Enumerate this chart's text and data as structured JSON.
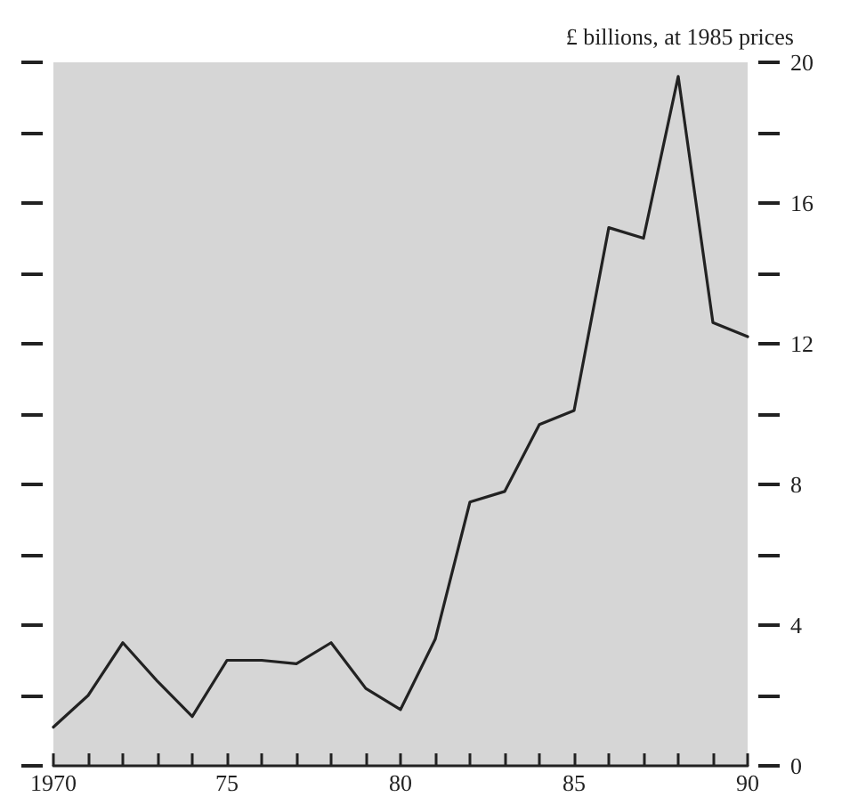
{
  "chart_data": {
    "type": "line",
    "ylabel": "£ billions, at 1985 prices",
    "x": [
      1970,
      1971,
      1972,
      1973,
      1974,
      1975,
      1976,
      1977,
      1978,
      1979,
      1980,
      1981,
      1982,
      1983,
      1984,
      1985,
      1986,
      1987,
      1988,
      1989,
      1990
    ],
    "series": [
      {
        "color": "#222222",
        "values": [
          1.1,
          2.0,
          3.5,
          2.4,
          1.4,
          3.0,
          3.0,
          2.9,
          3.5,
          2.2,
          1.6,
          3.6,
          7.5,
          7.8,
          9.7,
          10.1,
          15.3,
          15.0,
          19.6,
          12.6,
          12.2
        ]
      }
    ],
    "xlim": [
      1970,
      1990
    ],
    "xticks": [
      {
        "value": 1970,
        "label": "1970"
      },
      {
        "value": 1971,
        "label": null
      },
      {
        "value": 1972,
        "label": null
      },
      {
        "value": 1973,
        "label": null
      },
      {
        "value": 1974,
        "label": null
      },
      {
        "value": 1975,
        "label": "75"
      },
      {
        "value": 1976,
        "label": null
      },
      {
        "value": 1977,
        "label": null
      },
      {
        "value": 1978,
        "label": null
      },
      {
        "value": 1979,
        "label": null
      },
      {
        "value": 1980,
        "label": "80"
      },
      {
        "value": 1981,
        "label": null
      },
      {
        "value": 1982,
        "label": null
      },
      {
        "value": 1983,
        "label": null
      },
      {
        "value": 1984,
        "label": null
      },
      {
        "value": 1985,
        "label": "85"
      },
      {
        "value": 1986,
        "label": null
      },
      {
        "value": 1987,
        "label": null
      },
      {
        "value": 1988,
        "label": null
      },
      {
        "value": 1989,
        "label": null
      },
      {
        "value": 1990,
        "label": "90"
      }
    ],
    "ylim": [
      0,
      20
    ],
    "yticks": [
      0,
      {
        "value": 2,
        "label": null
      },
      4,
      {
        "value": 6,
        "label": null
      },
      8,
      {
        "value": 10,
        "label": null
      },
      12,
      {
        "value": 14,
        "label": null
      },
      16,
      {
        "value": 18,
        "label": null
      },
      20
    ],
    "grid": false,
    "marker": "none",
    "line_style": "solid"
  }
}
